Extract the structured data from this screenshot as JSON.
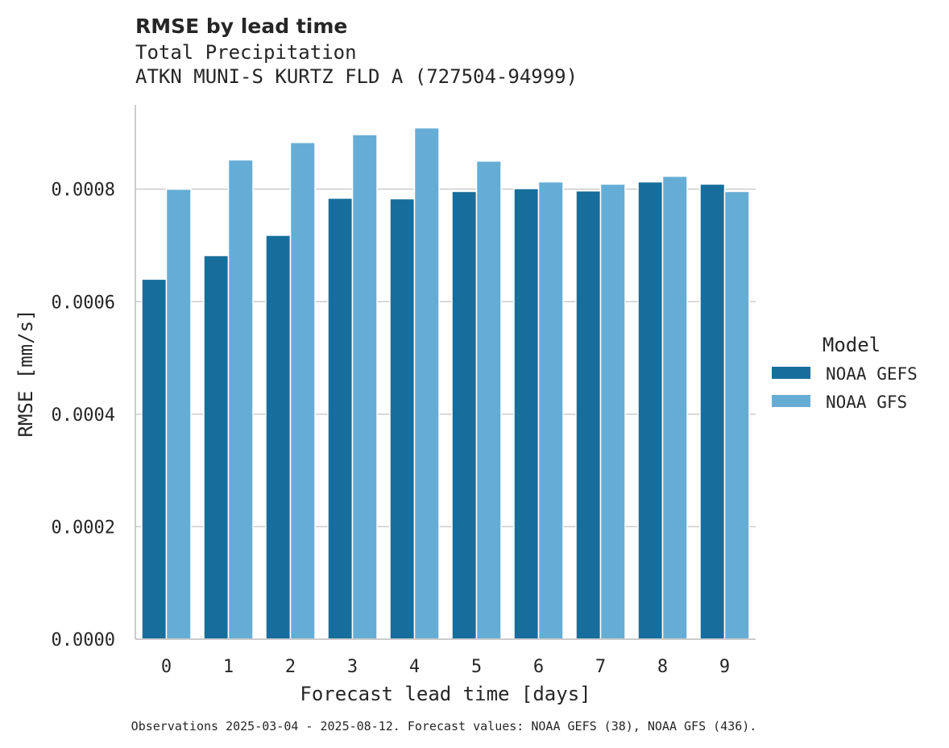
{
  "chart_data": {
    "type": "bar",
    "title": "RMSE by lead time",
    "subtitle": [
      "Total Precipitation",
      "ATKN MUNI-S KURTZ FLD A (727504-94999)"
    ],
    "xlabel": "Forecast lead time [days]",
    "ylabel": "RMSE [mm/s]",
    "categories": [
      "0",
      "1",
      "2",
      "3",
      "4",
      "5",
      "6",
      "7",
      "8",
      "9"
    ],
    "ylim": [
      0,
      0.00095
    ],
    "yticks": [
      "0.0000",
      "0.0002",
      "0.0004",
      "0.0006",
      "0.0008"
    ],
    "grid": "y",
    "legend": {
      "title": "Model",
      "placement": "right"
    },
    "series": [
      {
        "name": "NOAA GEFS",
        "color": "#176e9c",
        "values": [
          0.00064,
          0.000682,
          0.000718,
          0.000784,
          0.000783,
          0.000796,
          0.000801,
          0.000797,
          0.000813,
          0.000809
        ]
      },
      {
        "name": "NOAA GFS",
        "color": "#66add6",
        "values": [
          0.0008,
          0.000852,
          0.000883,
          0.000897,
          0.000909,
          0.00085,
          0.000813,
          0.000809,
          0.000823,
          0.000796
        ]
      }
    ],
    "footnote": "Observations 2025-03-04 - 2025-08-12. Forecast values: NOAA GEFS (38), NOAA GFS (436)."
  }
}
